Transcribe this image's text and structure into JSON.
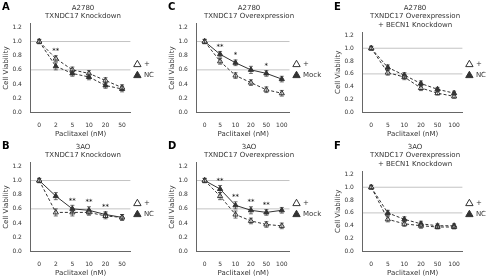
{
  "chart_data": [
    {
      "type": "line",
      "title": "A2780",
      "subtitle": "TXNDC17 Knockdown",
      "x_label": "Paclitaxel (nM)",
      "y_label": "Cell Viability",
      "categories": [
        "0",
        "2",
        "5",
        "10",
        "20",
        "50"
      ],
      "ylim": [
        0,
        1.25
      ],
      "yticks": [
        {
          "value": 0,
          "label": "0.0"
        },
        0.2,
        0.4,
        0.6,
        0.8,
        {
          "value": 1.0,
          "label": "1.0"
        },
        1.2
      ],
      "hlines": [
        0.6,
        1.0
      ],
      "grid": false,
      "legend": "right",
      "annotations": [
        {
          "text": "A"
        },
        {
          "category": "2",
          "text": "**"
        }
      ],
      "series": [
        {
          "name": "+",
          "color": "#333333",
          "values": [
            1.0,
            0.76,
            0.6,
            0.55,
            0.45,
            0.35
          ],
          "errors": [
            0.03,
            0.04,
            0.04,
            0.04,
            0.04,
            0.04
          ],
          "line_style": "dashed",
          "marker": "triangle-open"
        },
        {
          "name": "NC",
          "color": "#333333",
          "values": [
            1.0,
            0.65,
            0.55,
            0.5,
            0.38,
            0.33
          ],
          "errors": [
            0.03,
            0.05,
            0.04,
            0.04,
            0.04,
            0.04
          ],
          "line_style": "dashed",
          "marker": "triangle"
        }
      ]
    },
    {
      "type": "line",
      "title": "A2780",
      "subtitle": "TXNDC17 Overexpression",
      "x_label": "Paclitaxel (nM)",
      "y_label": "Cell Viability",
      "categories": [
        "0",
        "5",
        "10",
        "20",
        "50",
        "100"
      ],
      "ylim": [
        0,
        1.25
      ],
      "yticks": [
        {
          "value": 0,
          "label": "0.0"
        },
        0.2,
        0.4,
        0.6,
        0.8,
        {
          "value": 1.0,
          "label": "1.0"
        },
        1.2
      ],
      "hlines": [
        0.6,
        1.0
      ],
      "grid": false,
      "legend": "right",
      "annotations": [
        {
          "text": "C"
        },
        {
          "category": "5",
          "text": "**"
        },
        {
          "category": "10",
          "text": "*"
        },
        {
          "category": "50",
          "text": "*"
        }
      ],
      "series": [
        {
          "name": "+",
          "color": "#333333",
          "values": [
            1.0,
            0.72,
            0.52,
            0.42,
            0.32,
            0.27
          ],
          "errors": [
            0.03,
            0.04,
            0.04,
            0.04,
            0.04,
            0.04
          ],
          "line_style": "dashed",
          "marker": "triangle-open"
        },
        {
          "name": "Mock",
          "color": "#333333",
          "values": [
            1.0,
            0.82,
            0.7,
            0.6,
            0.55,
            0.47
          ],
          "errors": [
            0.03,
            0.04,
            0.04,
            0.05,
            0.04,
            0.04
          ],
          "line_style": "solid",
          "marker": "triangle"
        }
      ]
    },
    {
      "type": "line",
      "title": "A2780",
      "subtitle": "TXNDC17 Overexpression\n+ BECN1 Knockdown",
      "x_label": "Paclitaxel (nM)",
      "y_label": "Cell Viability",
      "categories": [
        "0",
        "5",
        "10",
        "20",
        "50",
        "100"
      ],
      "ylim": [
        0,
        1.25
      ],
      "yticks": [
        {
          "value": 0,
          "label": "0.0"
        },
        0.2,
        0.4,
        0.6,
        0.8,
        {
          "value": 1.0,
          "label": "1.0"
        },
        1.2
      ],
      "hlines": [
        0.6,
        1.0
      ],
      "grid": false,
      "legend": "right",
      "annotations": [
        {
          "text": "E"
        }
      ],
      "series": [
        {
          "name": "+",
          "color": "#333333",
          "values": [
            1.0,
            0.62,
            0.55,
            0.38,
            0.3,
            0.25
          ],
          "errors": [
            0.03,
            0.04,
            0.04,
            0.04,
            0.03,
            0.03
          ],
          "line_style": "dashed",
          "marker": "triangle-open"
        },
        {
          "name": "NC",
          "color": "#333333",
          "values": [
            1.0,
            0.7,
            0.58,
            0.45,
            0.36,
            0.3
          ],
          "errors": [
            0.03,
            0.04,
            0.04,
            0.04,
            0.03,
            0.03
          ],
          "line_style": "dashed",
          "marker": "triangle"
        }
      ]
    },
    {
      "type": "line",
      "title": "3AO",
      "subtitle": "TXNDC17 Knockdown",
      "x_label": "Paclitaxel (nM)",
      "y_label": "Cell Viability",
      "categories": [
        "0",
        "2",
        "5",
        "10",
        "20",
        "50"
      ],
      "ylim": [
        0,
        1.25
      ],
      "yticks": [
        {
          "value": 0,
          "label": "0.0"
        },
        0.2,
        0.4,
        0.6,
        0.8,
        {
          "value": 1.0,
          "label": "1.0"
        },
        1.2
      ],
      "hlines": [
        0.6,
        1.0
      ],
      "grid": false,
      "legend": "right",
      "annotations": [
        {
          "text": "B"
        },
        {
          "category": "5",
          "text": "**"
        },
        {
          "category": "10",
          "text": "**"
        },
        {
          "category": "20",
          "text": "**"
        }
      ],
      "series": [
        {
          "name": "+",
          "color": "#333333",
          "values": [
            1.0,
            0.55,
            0.55,
            0.55,
            0.5,
            0.48
          ],
          "errors": [
            0.03,
            0.05,
            0.05,
            0.04,
            0.04,
            0.04
          ],
          "line_style": "dashed",
          "marker": "triangle-open"
        },
        {
          "name": "NC",
          "color": "#333333",
          "values": [
            1.0,
            0.78,
            0.6,
            0.58,
            0.52,
            0.48
          ],
          "errors": [
            0.03,
            0.05,
            0.05,
            0.05,
            0.04,
            0.04
          ],
          "line_style": "solid",
          "marker": "triangle"
        }
      ]
    },
    {
      "type": "line",
      "title": "3AO",
      "subtitle": "TXNDC17 Overexpression",
      "x_label": "Paclitaxel (nM)",
      "y_label": "Cell Viability",
      "categories": [
        "0",
        "5",
        "10",
        "20",
        "50",
        "100"
      ],
      "ylim": [
        0,
        1.25
      ],
      "yticks": [
        {
          "value": 0,
          "label": "0.0"
        },
        0.2,
        0.4,
        0.6,
        0.8,
        {
          "value": 1.0,
          "label": "1.0"
        },
        1.2
      ],
      "hlines": [
        0.6,
        1.0
      ],
      "grid": false,
      "legend": "right",
      "annotations": [
        {
          "text": "D"
        },
        {
          "category": "5",
          "text": "**"
        },
        {
          "category": "10",
          "text": "**"
        },
        {
          "category": "20",
          "text": "**"
        },
        {
          "category": "50",
          "text": "**"
        }
      ],
      "series": [
        {
          "name": "+",
          "color": "#333333",
          "values": [
            1.0,
            0.78,
            0.52,
            0.43,
            0.38,
            0.36
          ],
          "errors": [
            0.03,
            0.05,
            0.05,
            0.04,
            0.04,
            0.04
          ],
          "line_style": "dashed",
          "marker": "triangle-open"
        },
        {
          "name": "Mock",
          "color": "#333333",
          "values": [
            1.0,
            0.88,
            0.65,
            0.58,
            0.55,
            0.58
          ],
          "errors": [
            0.03,
            0.05,
            0.05,
            0.05,
            0.04,
            0.04
          ],
          "line_style": "solid",
          "marker": "triangle"
        }
      ]
    },
    {
      "type": "line",
      "title": "3AO",
      "subtitle": "TXNDC17 Overexpression\n+ BECN1 Knockdown",
      "x_label": "Paclitaxel (nM)",
      "y_label": "Cell Viability",
      "categories": [
        "0",
        "5",
        "10",
        "20",
        "50",
        "100"
      ],
      "ylim": [
        0,
        1.25
      ],
      "yticks": [
        {
          "value": 0,
          "label": "0.0"
        },
        0.2,
        0.4,
        0.6,
        0.8,
        {
          "value": 1.0,
          "label": "1.0"
        },
        1.2
      ],
      "hlines": [
        0.6,
        1.0
      ],
      "grid": false,
      "legend": "right",
      "annotations": [
        {
          "text": "F"
        }
      ],
      "series": [
        {
          "name": "+",
          "color": "#333333",
          "values": [
            1.0,
            0.5,
            0.43,
            0.4,
            0.38,
            0.38
          ],
          "errors": [
            0.03,
            0.04,
            0.04,
            0.04,
            0.03,
            0.03
          ],
          "line_style": "dashed",
          "marker": "triangle-open"
        },
        {
          "name": "NC",
          "color": "#333333",
          "values": [
            1.0,
            0.6,
            0.5,
            0.43,
            0.4,
            0.4
          ],
          "errors": [
            0.03,
            0.04,
            0.04,
            0.04,
            0.03,
            0.03
          ],
          "line_style": "dashed",
          "marker": "triangle"
        }
      ]
    }
  ]
}
